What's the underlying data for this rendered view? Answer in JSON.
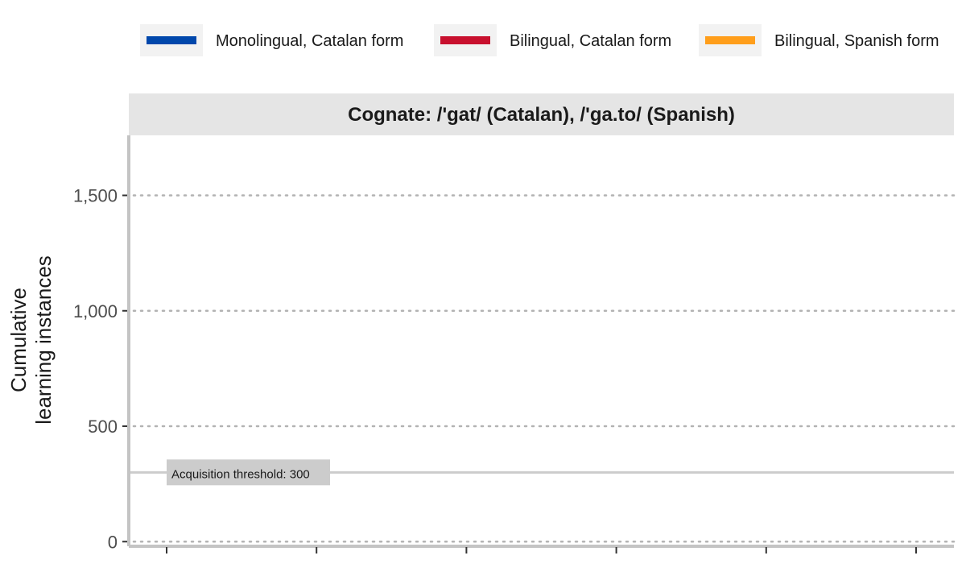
{
  "chart_data": {
    "type": "line",
    "title": "",
    "facet_title": "Cognate: /'gat/ (Catalan), /'ga.to/ (Spanish)",
    "ylabel_lines": [
      "Cumulative",
      "learning instances"
    ],
    "xlabel": "",
    "ylim": [
      -20,
      1760
    ],
    "y_ticks": [
      0,
      500,
      1000,
      1500
    ],
    "y_tick_labels": [
      "0",
      "500",
      "1,000",
      "1,500"
    ],
    "x_tick_count": 6,
    "grid": "horizontal-dotted",
    "legend_position": "top",
    "series": [
      {
        "name": "Monolingual, Catalan form",
        "color": "#0047ab",
        "values": []
      },
      {
        "name": "Bilingual, Catalan form",
        "color": "#c8102e",
        "values": []
      },
      {
        "name": "Bilingual, Spanish form",
        "color": "#ff9e1b",
        "values": []
      }
    ],
    "threshold": {
      "value": 300,
      "label": "Acquisition threshold: 300"
    }
  }
}
